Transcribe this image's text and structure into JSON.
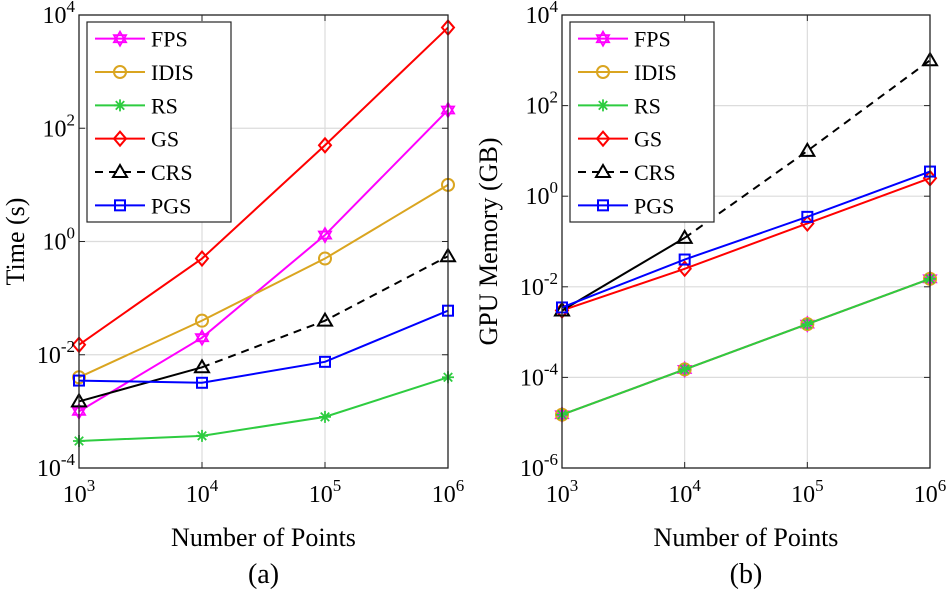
{
  "chart_data": [
    {
      "type": "line",
      "caption": "(a)",
      "xlabel": "Number of Points",
      "ylabel": "Time (s)",
      "xscale": "log",
      "yscale": "log",
      "xlim": [
        1000,
        1000000
      ],
      "ylim": [
        0.0001,
        10000
      ],
      "grid": true,
      "legend_position": "top-left",
      "x": [
        1000,
        10000,
        100000,
        1000000
      ],
      "x_tick_labels": [
        {
          "base": "10",
          "exp": "3"
        },
        {
          "base": "10",
          "exp": "4"
        },
        {
          "base": "10",
          "exp": "5"
        },
        {
          "base": "10",
          "exp": "6"
        }
      ],
      "y_tick_labels": [
        {
          "base": "10",
          "exp": "-4"
        },
        {
          "base": "10",
          "exp": "-2"
        },
        {
          "base": "10",
          "exp": "0"
        },
        {
          "base": "10",
          "exp": "2"
        },
        {
          "base": "10",
          "exp": "4"
        }
      ],
      "series": [
        {
          "name": "FPS",
          "color": "#ff00ff",
          "marker": "hexagram",
          "dashed": false,
          "values": [
            0.001,
            0.02,
            1.3,
            210
          ]
        },
        {
          "name": "IDIS",
          "color": "#daa520",
          "marker": "circle",
          "dashed": false,
          "values": [
            0.004,
            0.04,
            0.5,
            10
          ]
        },
        {
          "name": "RS",
          "color": "#2ecc40",
          "marker": "asterisk",
          "dashed": false,
          "values": [
            0.0003,
            0.00037,
            0.0008,
            0.004
          ]
        },
        {
          "name": "GS",
          "color": "#ff0000",
          "marker": "diamond",
          "dashed": false,
          "values": [
            0.015,
            0.5,
            50,
            6000
          ]
        },
        {
          "name": "CRS",
          "color": "#000000",
          "marker": "triangle",
          "dashed": true,
          "values": [
            0.0015,
            0.006,
            0.04,
            0.55
          ]
        },
        {
          "name": "PGS",
          "color": "#0000ff",
          "marker": "square",
          "dashed": false,
          "values": [
            0.0035,
            0.0032,
            0.0075,
            0.06
          ]
        }
      ]
    },
    {
      "type": "line",
      "caption": "(b)",
      "xlabel": "Number of Points",
      "ylabel": "GPU Memory (GB)",
      "xscale": "log",
      "yscale": "log",
      "xlim": [
        1000,
        1000000
      ],
      "ylim": [
        1e-06,
        10000
      ],
      "grid": true,
      "legend_position": "top-left",
      "x": [
        1000,
        10000,
        100000,
        1000000
      ],
      "x_tick_labels": [
        {
          "base": "10",
          "exp": "3"
        },
        {
          "base": "10",
          "exp": "4"
        },
        {
          "base": "10",
          "exp": "5"
        },
        {
          "base": "10",
          "exp": "6"
        }
      ],
      "y_tick_labels": [
        {
          "base": "10",
          "exp": "-6"
        },
        {
          "base": "10",
          "exp": "-4"
        },
        {
          "base": "10",
          "exp": "-2"
        },
        {
          "base": "10",
          "exp": "0"
        },
        {
          "base": "10",
          "exp": "2"
        },
        {
          "base": "10",
          "exp": "4"
        }
      ],
      "series": [
        {
          "name": "FPS",
          "color": "#ff00ff",
          "marker": "hexagram",
          "dashed": false,
          "values": [
            1.5e-05,
            0.00015,
            0.0015,
            0.015
          ]
        },
        {
          "name": "IDIS",
          "color": "#daa520",
          "marker": "circle",
          "dashed": false,
          "values": [
            1.5e-05,
            0.00015,
            0.0015,
            0.015
          ]
        },
        {
          "name": "RS",
          "color": "#2ecc40",
          "marker": "asterisk",
          "dashed": false,
          "values": [
            1.5e-05,
            0.00015,
            0.0015,
            0.015
          ]
        },
        {
          "name": "GS",
          "color": "#ff0000",
          "marker": "diamond",
          "dashed": false,
          "values": [
            0.003,
            0.025,
            0.25,
            2.5
          ]
        },
        {
          "name": "CRS",
          "color": "#000000",
          "marker": "triangle",
          "dashed": true,
          "values": [
            0.003,
            0.12,
            10,
            1000
          ]
        },
        {
          "name": "PGS",
          "color": "#0000ff",
          "marker": "square",
          "dashed": false,
          "values": [
            0.0035,
            0.04,
            0.35,
            3.5
          ]
        }
      ]
    }
  ]
}
